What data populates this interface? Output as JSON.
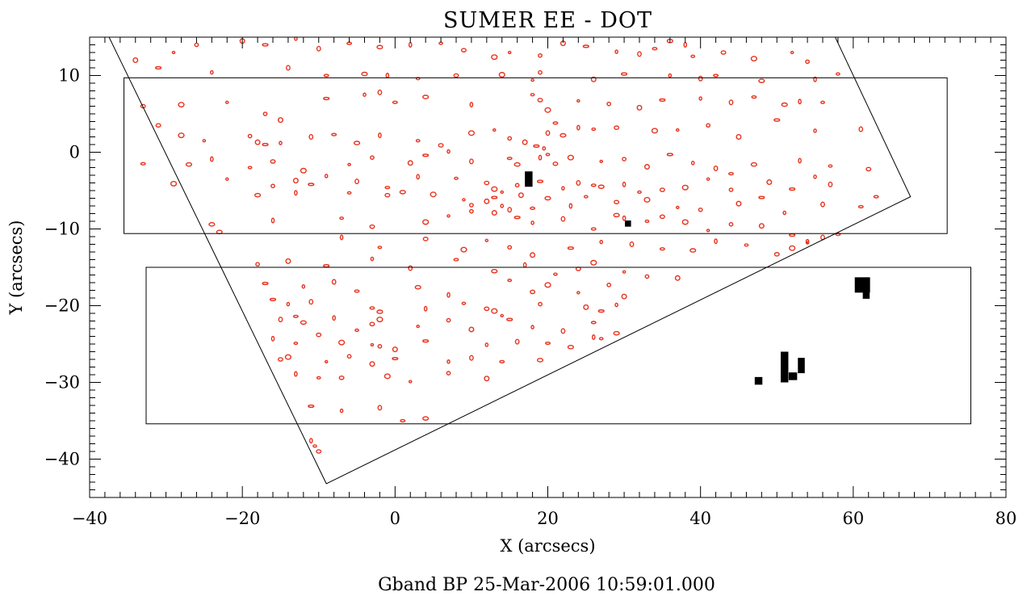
{
  "chart_data": {
    "type": "scatter",
    "title": "SUMER EE - DOT",
    "xlabel": "X (arcsecs)",
    "ylabel": "Y (arcsecs)",
    "footer": "Gband BP 25-Mar-2006 10:59:01.000",
    "xlim": [
      -40,
      80
    ],
    "ylim": [
      -45,
      15
    ],
    "x_ticks": [
      -40,
      -20,
      0,
      20,
      40,
      60,
      80
    ],
    "y_ticks": [
      -40,
      -30,
      -20,
      -10,
      0,
      10
    ],
    "x_tick_labels": [
      "−40",
      "−20",
      "0",
      "20",
      "40",
      "60",
      "80"
    ],
    "y_tick_labels": [
      "−40",
      "−30",
      "−20",
      "−10",
      "0",
      "10"
    ],
    "grid": false,
    "colors": {
      "bright_points": "#e8321e",
      "sumer_events": "#000000",
      "frame": "#000000"
    },
    "rectangles": [
      {
        "name": "upper-raster-box",
        "x": [
          -35.5,
          72.3
        ],
        "y": [
          -10.6,
          9.7
        ]
      },
      {
        "name": "lower-raster-box",
        "x": [
          -32.6,
          75.4
        ],
        "y": [
          -35.4,
          -15.0
        ]
      }
    ],
    "field_of_view_polygon": [
      [
        -37.7,
        15.5
      ],
      [
        57.4,
        15.5
      ],
      [
        67.5,
        -5.8
      ],
      [
        -9.0,
        -43.2
      ],
      [
        -37.7,
        15.5
      ]
    ],
    "sumer_events": [
      {
        "x": 17.5,
        "y": -3.5,
        "w": 1.0,
        "h": 2.0
      },
      {
        "x": 30.5,
        "y": -9.3,
        "w": 0.8,
        "h": 0.8
      },
      {
        "x": 61.2,
        "y": -17.3,
        "w": 2.0,
        "h": 2.0
      },
      {
        "x": 61.7,
        "y": -18.6,
        "w": 0.9,
        "h": 1.0
      },
      {
        "x": 51.0,
        "y": -28.0,
        "w": 1.0,
        "h": 4.0
      },
      {
        "x": 52.1,
        "y": -29.2,
        "w": 1.1,
        "h": 1.0
      },
      {
        "x": 53.2,
        "y": -27.8,
        "w": 0.9,
        "h": 2.0
      },
      {
        "x": 47.6,
        "y": -29.8,
        "w": 1.0,
        "h": 1.0
      }
    ],
    "bright_points": [
      [
        -29,
        13
      ],
      [
        -26,
        14
      ],
      [
        -20,
        14.5
      ],
      [
        -17,
        14
      ],
      [
        -13,
        14.8
      ],
      [
        -10,
        13.5
      ],
      [
        -6,
        14.2
      ],
      [
        -2,
        13.7
      ],
      [
        2,
        14
      ],
      [
        6,
        14.2
      ],
      [
        9,
        13.3
      ],
      [
        13,
        12.4
      ],
      [
        15,
        13
      ],
      [
        19,
        12.6
      ],
      [
        22,
        14.2
      ],
      [
        25,
        13.8
      ],
      [
        29,
        13.1
      ],
      [
        32,
        12.8
      ],
      [
        34,
        13.5
      ],
      [
        36,
        14.5
      ],
      [
        38,
        14
      ],
      [
        39,
        12.5
      ],
      [
        43,
        13
      ],
      [
        47,
        12.2
      ],
      [
        52,
        13
      ],
      [
        54,
        11.8
      ],
      [
        -34,
        12
      ],
      [
        -31,
        11
      ],
      [
        -24,
        10.4
      ],
      [
        -14,
        11
      ],
      [
        -9,
        10
      ],
      [
        -4,
        10.2
      ],
      [
        -1,
        10
      ],
      [
        3,
        9.6
      ],
      [
        8,
        10
      ],
      [
        14,
        10.1
      ],
      [
        18,
        9.4
      ],
      [
        19,
        10.4
      ],
      [
        26,
        9.5
      ],
      [
        30,
        10.2
      ],
      [
        36,
        10
      ],
      [
        40,
        9.6
      ],
      [
        42,
        10
      ],
      [
        48,
        9.3
      ],
      [
        55,
        9.5
      ],
      [
        58,
        10.2
      ],
      [
        -33,
        6
      ],
      [
        -28,
        6.2
      ],
      [
        -22,
        6.5
      ],
      [
        -17,
        5
      ],
      [
        -15,
        4.2
      ],
      [
        -9,
        7
      ],
      [
        -4,
        7.5
      ],
      [
        -2,
        7.8
      ],
      [
        0,
        6.5
      ],
      [
        4,
        7.2
      ],
      [
        10,
        6.2
      ],
      [
        18,
        7.5
      ],
      [
        19,
        6.8
      ],
      [
        20,
        5.5
      ],
      [
        24,
        6.7
      ],
      [
        28,
        6.3
      ],
      [
        32,
        5.8
      ],
      [
        35,
        6.8
      ],
      [
        40,
        7
      ],
      [
        44,
        6.5
      ],
      [
        47,
        7.2
      ],
      [
        51,
        6.2
      ],
      [
        53,
        6.6
      ],
      [
        56,
        6.5
      ],
      [
        -31,
        3.5
      ],
      [
        -28,
        2.2
      ],
      [
        -25,
        1.5
      ],
      [
        -19,
        2.1
      ],
      [
        -18,
        1.3
      ],
      [
        -17,
        1
      ],
      [
        -15,
        1.2
      ],
      [
        -11,
        2
      ],
      [
        -8,
        2.3
      ],
      [
        -5,
        1.2
      ],
      [
        -2,
        2.2
      ],
      [
        3,
        1.5
      ],
      [
        6,
        0.9
      ],
      [
        10,
        2.5
      ],
      [
        13,
        2.9
      ],
      [
        15,
        1.8
      ],
      [
        17,
        1.3
      ],
      [
        18.5,
        0.8
      ],
      [
        19.5,
        0.5
      ],
      [
        20,
        2.5
      ],
      [
        21,
        3.8
      ],
      [
        22,
        2.2
      ],
      [
        24,
        3.2
      ],
      [
        26,
        3
      ],
      [
        29,
        3.2
      ],
      [
        34,
        2.8
      ],
      [
        37,
        2.9
      ],
      [
        41,
        3.5
      ],
      [
        45,
        2
      ],
      [
        50,
        4.2
      ],
      [
        55,
        2.8
      ],
      [
        61,
        3
      ],
      [
        -33,
        -1.5
      ],
      [
        -27,
        -1.6
      ],
      [
        -24,
        -0.9
      ],
      [
        -19,
        -2
      ],
      [
        -16,
        -1.2
      ],
      [
        -12,
        -2.4
      ],
      [
        -6,
        -1.6
      ],
      [
        -3,
        -0.7
      ],
      [
        2,
        -1.4
      ],
      [
        4,
        -0.4
      ],
      [
        7,
        0.1
      ],
      [
        10,
        -1.2
      ],
      [
        15,
        -0.8
      ],
      [
        16,
        -1.6
      ],
      [
        19,
        -0.7
      ],
      [
        20,
        -0.3
      ],
      [
        21,
        -1.5
      ],
      [
        23,
        -0.7
      ],
      [
        27,
        -1.2
      ],
      [
        30,
        -0.9
      ],
      [
        33,
        -1.9
      ],
      [
        36,
        -0.3
      ],
      [
        39,
        -1.4
      ],
      [
        42,
        -2.1
      ],
      [
        44,
        -2.8
      ],
      [
        47,
        -1.6
      ],
      [
        53,
        -1.1
      ],
      [
        57,
        -1.8
      ],
      [
        62,
        -2.2
      ],
      [
        -29,
        -4.1
      ],
      [
        -22,
        -3.5
      ],
      [
        -16,
        -4.4
      ],
      [
        -13,
        -3.7
      ],
      [
        -11,
        -4.2
      ],
      [
        -9,
        -3.1
      ],
      [
        -5,
        -3.8
      ],
      [
        -1,
        -4.6
      ],
      [
        1,
        -5.2
      ],
      [
        3,
        -3.2
      ],
      [
        8,
        -3.4
      ],
      [
        12,
        -4
      ],
      [
        13,
        -4.8
      ],
      [
        14,
        -5.2
      ],
      [
        16,
        -4.3
      ],
      [
        16.5,
        -5.6
      ],
      [
        19,
        -3.8
      ],
      [
        22,
        -4.7
      ],
      [
        24,
        -4
      ],
      [
        26,
        -4.3
      ],
      [
        27,
        -4.5
      ],
      [
        30,
        -4.2
      ],
      [
        32,
        -5.2
      ],
      [
        35,
        -4.9
      ],
      [
        38,
        -4.6
      ],
      [
        41,
        -3.5
      ],
      [
        44,
        -4.9
      ],
      [
        49,
        -3.9
      ],
      [
        52,
        -4.8
      ],
      [
        55,
        -3.2
      ],
      [
        57,
        -4.2
      ],
      [
        63,
        -5.8
      ],
      [
        -18,
        -5.6
      ],
      [
        -13,
        -5.3
      ],
      [
        -6,
        -5.3
      ],
      [
        -1,
        -5.6
      ],
      [
        5,
        -5.5
      ],
      [
        9,
        -6.2
      ],
      [
        10,
        -6.9
      ],
      [
        12,
        -6.4
      ],
      [
        13,
        -5.9
      ],
      [
        14,
        -7
      ],
      [
        15,
        -7.5
      ],
      [
        18,
        -7.3
      ],
      [
        20,
        -6
      ],
      [
        23,
        -7
      ],
      [
        25,
        -5.8
      ],
      [
        29,
        -6.5
      ],
      [
        33,
        -6.2
      ],
      [
        37,
        -7.2
      ],
      [
        40,
        -7.5
      ],
      [
        45,
        -6.7
      ],
      [
        48,
        -5.9
      ],
      [
        51,
        -7.9
      ],
      [
        56,
        -6.8
      ],
      [
        61,
        -7.1
      ],
      [
        -24,
        -9.4
      ],
      [
        -16,
        -8.9
      ],
      [
        -7,
        -8.6
      ],
      [
        -3,
        -9.7
      ],
      [
        4,
        -9.1
      ],
      [
        7,
        -8.3
      ],
      [
        10,
        -7.7
      ],
      [
        13,
        -7.9
      ],
      [
        16,
        -8.5
      ],
      [
        18,
        -9.2
      ],
      [
        22,
        -8.7
      ],
      [
        26,
        -10
      ],
      [
        29,
        -8.2
      ],
      [
        30,
        -8.6
      ],
      [
        33,
        -9
      ],
      [
        35,
        -8.4
      ],
      [
        38,
        -9.1
      ],
      [
        41,
        -10.2
      ],
      [
        44,
        -9.4
      ],
      [
        48,
        -9.6
      ],
      [
        52,
        -10.8
      ],
      [
        54,
        -11.6
      ],
      [
        56,
        -11.1
      ],
      [
        58,
        -10.7
      ],
      [
        -23,
        -10.4
      ],
      [
        -7,
        -11.1
      ],
      [
        -2,
        -12.4
      ],
      [
        4,
        -11.3
      ],
      [
        9,
        -12.7
      ],
      [
        12,
        -11.5
      ],
      [
        15,
        -12.4
      ],
      [
        18,
        -13.4
      ],
      [
        23,
        -12.5
      ],
      [
        27,
        -11.7
      ],
      [
        31,
        -12
      ],
      [
        35,
        -12.6
      ],
      [
        39,
        -12.8
      ],
      [
        42,
        -11.6
      ],
      [
        46,
        -12.1
      ],
      [
        50,
        -13.3
      ],
      [
        52,
        -12.5
      ],
      [
        54,
        -11.8
      ],
      [
        -18,
        -14.6
      ],
      [
        -14,
        -14.2
      ],
      [
        -9,
        -14.8
      ],
      [
        -3,
        -13.9
      ],
      [
        2,
        -15.1
      ],
      [
        8,
        -14
      ],
      [
        13,
        -15.5
      ],
      [
        17,
        -14.7
      ],
      [
        21,
        -15.9
      ],
      [
        24,
        -15.2
      ],
      [
        26,
        -14.4
      ],
      [
        30,
        -15.6
      ],
      [
        33,
        -16.2
      ],
      [
        37,
        -16.4
      ],
      [
        -17,
        -17.1
      ],
      [
        -12,
        -17.5
      ],
      [
        -8,
        -16.9
      ],
      [
        -5,
        -18.1
      ],
      [
        3,
        -17.6
      ],
      [
        7,
        -18.6
      ],
      [
        15,
        -16.7
      ],
      [
        18,
        -18.2
      ],
      [
        20,
        -17.3
      ],
      [
        24,
        -18.3
      ],
      [
        28,
        -17.3
      ],
      [
        30,
        -18.8
      ],
      [
        -16,
        -19.2
      ],
      [
        -14,
        -19.8
      ],
      [
        -11,
        -19.5
      ],
      [
        -3,
        -20.3
      ],
      [
        -2,
        -20.8
      ],
      [
        4,
        -20.4
      ],
      [
        9,
        -19.7
      ],
      [
        12,
        -20.4
      ],
      [
        13,
        -20.7
      ],
      [
        14,
        -21.3
      ],
      [
        19,
        -19.8
      ],
      [
        25,
        -20.2
      ],
      [
        27,
        -20.7
      ],
      [
        29,
        -19.9
      ],
      [
        -15,
        -21.8
      ],
      [
        -13,
        -21.4
      ],
      [
        -12,
        -22.2
      ],
      [
        -8,
        -21.6
      ],
      [
        -5,
        -23.2
      ],
      [
        -3,
        -22.4
      ],
      [
        -2,
        -21.8
      ],
      [
        3,
        -22.7
      ],
      [
        7,
        -21.9
      ],
      [
        10,
        -23.1
      ],
      [
        15,
        -21.8
      ],
      [
        18,
        -22.8
      ],
      [
        22,
        -23.3
      ],
      [
        26,
        -22.2
      ],
      [
        29,
        -23.6
      ],
      [
        -16,
        -24.3
      ],
      [
        -13,
        -24.9
      ],
      [
        -10,
        -23.8
      ],
      [
        -7,
        -24.8
      ],
      [
        -3,
        -25.1
      ],
      [
        -2,
        -25.3
      ],
      [
        0,
        -25.7
      ],
      [
        4,
        -24.6
      ],
      [
        12,
        -25.1
      ],
      [
        16,
        -24.7
      ],
      [
        20,
        -24.9
      ],
      [
        23,
        -25.4
      ],
      [
        26,
        -24.1
      ],
      [
        27,
        -24.3
      ],
      [
        -15,
        -27
      ],
      [
        -14,
        -26.7
      ],
      [
        -9,
        -27.3
      ],
      [
        -6,
        -26.6
      ],
      [
        -3,
        -27.6
      ],
      [
        0,
        -26.9
      ],
      [
        7,
        -27.3
      ],
      [
        10,
        -26.8
      ],
      [
        14,
        -27.3
      ],
      [
        19,
        -27.1
      ],
      [
        -13,
        -28.9
      ],
      [
        -10,
        -29.4
      ],
      [
        -7,
        -29.4
      ],
      [
        -1,
        -29.2
      ],
      [
        2,
        -29.9
      ],
      [
        7,
        -28.8
      ],
      [
        12,
        -29.5
      ],
      [
        -11,
        -33.1
      ],
      [
        -7,
        -33.7
      ],
      [
        -2,
        -33.3
      ],
      [
        1,
        -35
      ],
      [
        4,
        -34.7
      ],
      [
        -11,
        -37.6
      ],
      [
        -10.5,
        -38.3
      ],
      [
        -10,
        -39
      ]
    ]
  }
}
